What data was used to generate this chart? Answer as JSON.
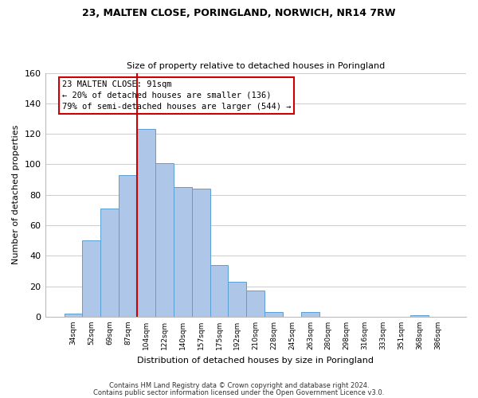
{
  "title_line1": "23, MALTEN CLOSE, PORINGLAND, NORWICH, NR14 7RW",
  "title_line2": "Size of property relative to detached houses in Poringland",
  "xlabel": "Distribution of detached houses by size in Poringland",
  "ylabel": "Number of detached properties",
  "bin_labels": [
    "34sqm",
    "52sqm",
    "69sqm",
    "87sqm",
    "104sqm",
    "122sqm",
    "140sqm",
    "157sqm",
    "175sqm",
    "192sqm",
    "210sqm",
    "228sqm",
    "245sqm",
    "263sqm",
    "280sqm",
    "298sqm",
    "316sqm",
    "333sqm",
    "351sqm",
    "368sqm",
    "386sqm"
  ],
  "bar_heights": [
    2,
    50,
    71,
    93,
    123,
    101,
    85,
    84,
    34,
    23,
    17,
    3,
    0,
    3,
    0,
    0,
    0,
    0,
    0,
    1,
    0
  ],
  "bar_color": "#aec6e8",
  "bar_edge_color": "#5a9fd4",
  "vline_x": 3.5,
  "vline_color": "#cc0000",
  "annotation_box_text": "23 MALTEN CLOSE: 91sqm\n← 20% of detached houses are smaller (136)\n79% of semi-detached houses are larger (544) →",
  "box_edge_color": "#cc0000",
  "ylim": [
    0,
    160
  ],
  "yticks": [
    0,
    20,
    40,
    60,
    80,
    100,
    120,
    140,
    160
  ],
  "footer_line1": "Contains HM Land Registry data © Crown copyright and database right 2024.",
  "footer_line2": "Contains public sector information licensed under the Open Government Licence v3.0.",
  "background_color": "#ffffff",
  "grid_color": "#cccccc"
}
